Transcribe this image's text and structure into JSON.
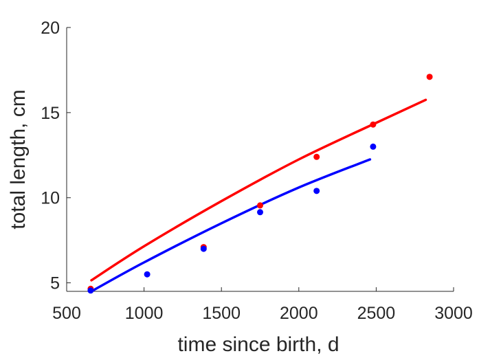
{
  "chart_data": {
    "type": "scatter",
    "xlabel": "time since birth, d",
    "ylabel": "total length, cm",
    "xlim": [
      500,
      3000
    ],
    "ylim": [
      4.5,
      20
    ],
    "xticks": [
      500,
      1000,
      1500,
      2000,
      2500,
      3000
    ],
    "yticks": [
      5,
      10,
      15,
      20
    ],
    "x_tick_labels": [
      "500",
      "1000",
      "1500",
      "2000",
      "2500",
      "3000"
    ],
    "y_tick_labels": [
      "5",
      "10",
      "15",
      "20"
    ],
    "grid": false,
    "series": [
      {
        "color": "#ff0000",
        "points": [
          {
            "x": 655,
            "y": 4.65
          },
          {
            "x": 1385,
            "y": 7.1
          },
          {
            "x": 1750,
            "y": 9.55
          },
          {
            "x": 2115,
            "y": 12.4
          },
          {
            "x": 2480,
            "y": 14.3
          },
          {
            "x": 2845,
            "y": 17.1
          }
        ],
        "curve": [
          {
            "x": 660,
            "y": 5.15
          },
          {
            "x": 1000,
            "y": 7.15
          },
          {
            "x": 1500,
            "y": 9.8
          },
          {
            "x": 2000,
            "y": 12.25
          },
          {
            "x": 2500,
            "y": 14.4
          },
          {
            "x": 2820,
            "y": 15.75
          }
        ]
      },
      {
        "color": "#0000ff",
        "points": [
          {
            "x": 655,
            "y": 4.55
          },
          {
            "x": 1020,
            "y": 5.5
          },
          {
            "x": 1385,
            "y": 7.0
          },
          {
            "x": 1750,
            "y": 9.15
          },
          {
            "x": 2115,
            "y": 10.4
          },
          {
            "x": 2480,
            "y": 13.0
          }
        ],
        "curve": [
          {
            "x": 660,
            "y": 4.5
          },
          {
            "x": 1000,
            "y": 6.2
          },
          {
            "x": 1500,
            "y": 8.5
          },
          {
            "x": 2000,
            "y": 10.6
          },
          {
            "x": 2460,
            "y": 12.25
          }
        ]
      }
    ]
  }
}
